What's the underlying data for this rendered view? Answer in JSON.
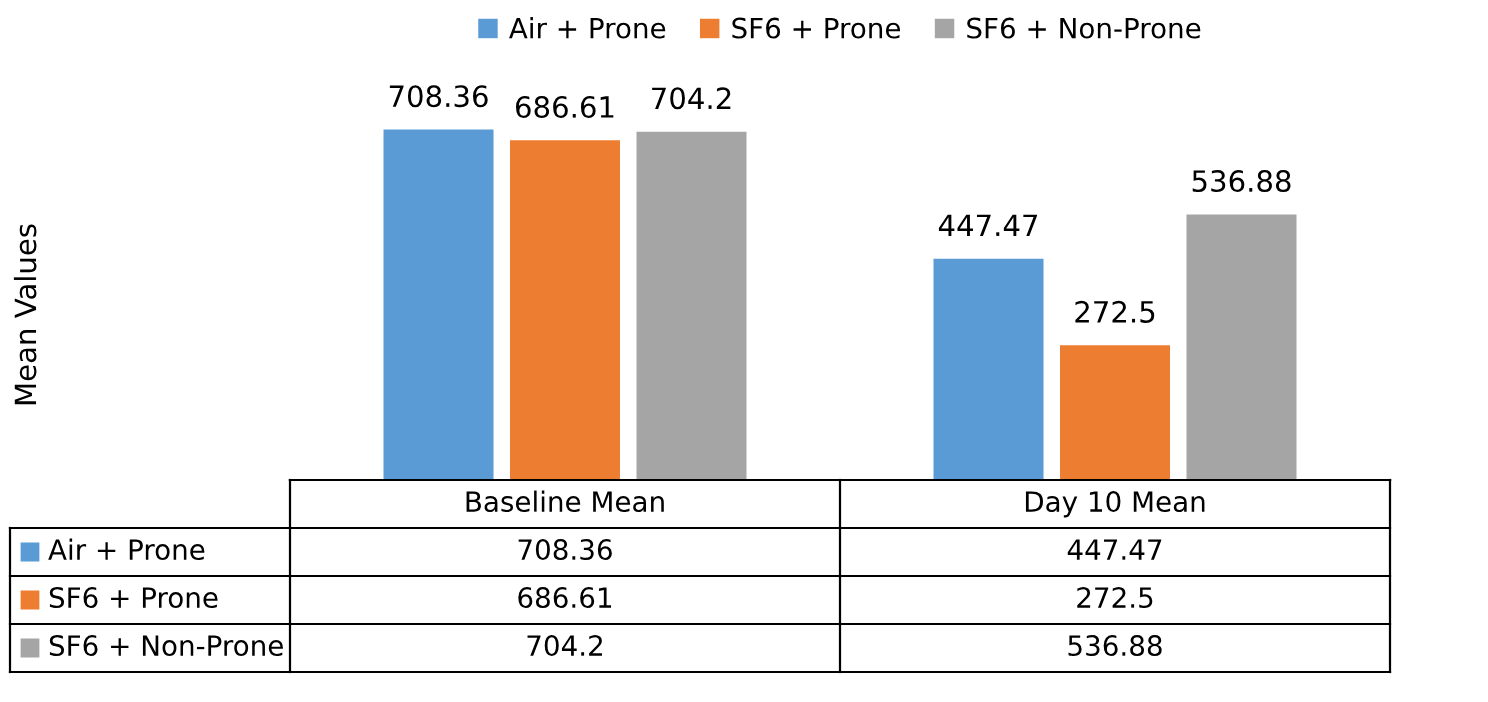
{
  "chart_data": {
    "type": "bar",
    "annotations": [
      "Mean Values",
      "708.36",
      "447.47",
      "686.61",
      "272.5",
      "704.2",
      "536.88"
    ],
    "categories": [
      "Baseline Mean",
      "Day 10 Mean"
    ],
    "series": [
      {
        "name": "Air + Prone",
        "color": "#5b9bd5",
        "values": [
          708.36,
          447.47
        ],
        "value_labels": [
          "708.36",
          "447.47"
        ]
      },
      {
        "name": "SF6 + Prone",
        "color": "#ed7d31",
        "values": [
          686.61,
          272.5
        ],
        "value_labels": [
          "686.61",
          "272.5"
        ]
      },
      {
        "name": "SF6 + Non-Prone",
        "color": "#a5a5a5",
        "values": [
          704.2,
          536.88
        ],
        "value_labels": [
          "704.2",
          "536.88"
        ]
      }
    ],
    "legend": "top"
  }
}
